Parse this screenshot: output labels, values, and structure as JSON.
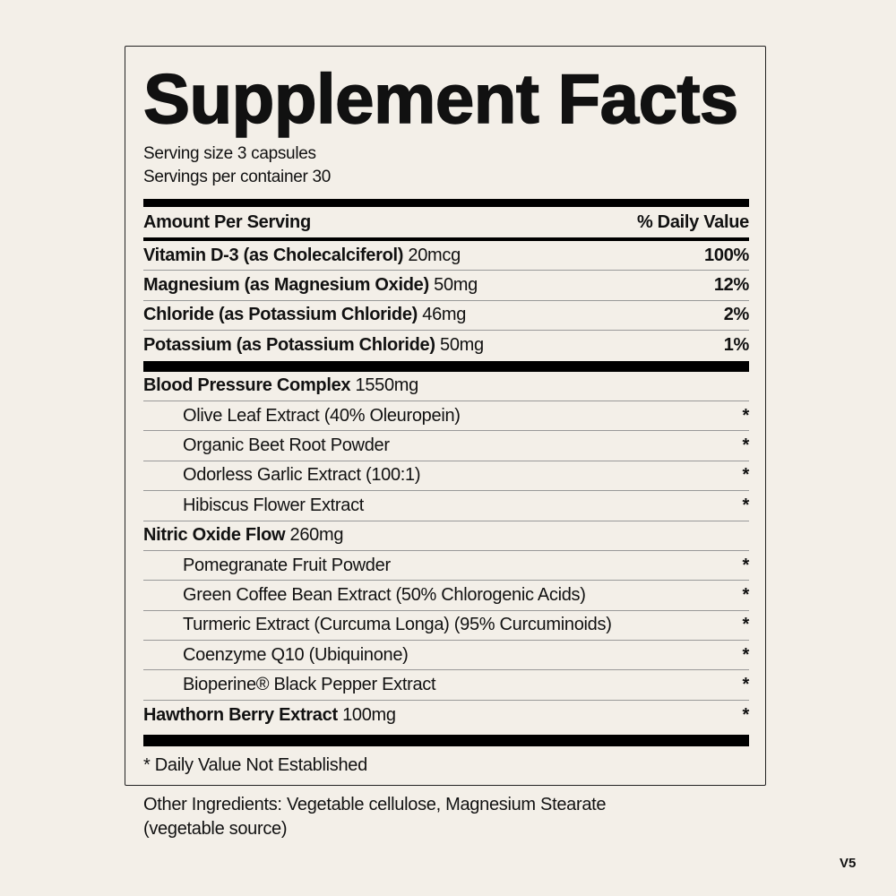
{
  "title": "Supplement Facts",
  "serving_size": "Serving size 3 capsules",
  "servings_per_container": "Servings per container 30",
  "header": {
    "left": "Amount Per Serving",
    "right": "% Daily Value"
  },
  "nutrients": [
    {
      "name": "Vitamin D-3 (as Cholecalciferol)",
      "amount": "20mcg",
      "dv": "100%"
    },
    {
      "name": "Magnesium (as Magnesium Oxide)",
      "amount": "50mg",
      "dv": "12%"
    },
    {
      "name": "Chloride (as Potassium Chloride)",
      "amount": "46mg",
      "dv": "2%"
    },
    {
      "name": "Potassium (as Potassium Chloride)",
      "amount": "50mg",
      "dv": "1%"
    }
  ],
  "blend1": {
    "name": "Blood Pressure Complex",
    "amount": "1550mg",
    "items": [
      "Olive Leaf Extract (40% Oleuropein)",
      "Organic Beet Root Powder",
      "Odorless Garlic Extract (100:1)",
      "Hibiscus Flower Extract"
    ]
  },
  "blend2": {
    "name": "Nitric Oxide Flow",
    "amount": "260mg",
    "items": [
      "Pomegranate Fruit Powder",
      "Green Coffee Bean Extract (50% Chlorogenic Acids)",
      "Turmeric Extract (Curcuma Longa) (95% Curcuminoids)",
      "Coenzyme Q10 (Ubiquinone)",
      "Bioperine® Black Pepper Extract"
    ]
  },
  "hawthorn": {
    "name": "Hawthorn Berry Extract",
    "amount": "100mg"
  },
  "asterisk": "*",
  "footnote": "* Daily Value Not Established",
  "other_ingredients_line1": "Other Ingredients: Vegetable cellulose, Magnesium Stearate",
  "other_ingredients_line2": "(vegetable source)",
  "version": "V5"
}
